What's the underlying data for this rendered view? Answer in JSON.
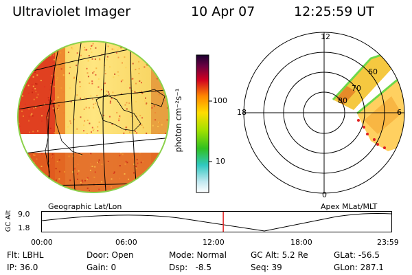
{
  "header": {
    "instrument": "Ultraviolet Imager",
    "date": "10 Apr 07",
    "time": "12:25:59 UT"
  },
  "colorbar": {
    "unit_label": "photon cm⁻²s⁻¹",
    "ticks": [
      {
        "label": "100",
        "value": 100
      },
      {
        "label": "10",
        "value": 10
      }
    ]
  },
  "geo_panel": {
    "label": "Geographic Lat/Lon"
  },
  "polar_panel": {
    "label": "Apex MLat/MLT",
    "mlt_labels": {
      "top": "12",
      "left": "18",
      "right": "6",
      "bottom": "0"
    },
    "lat_labels": [
      "60",
      "70",
      "80"
    ]
  },
  "alt_plot": {
    "ylabel": "GC Alt",
    "ytick_top": "9.0",
    "ytick_bottom": "1.8",
    "xticks": [
      "00:00",
      "06:00",
      "12:00",
      "18:00",
      "23:59"
    ],
    "current_hour": 12.43
  },
  "info": {
    "filter": "Flt: LBHL",
    "ip": "IP: 36.0",
    "door": "Door: Open",
    "gain": "Gain: 0",
    "mode": "Mode: Normal",
    "dsp": "Dsp:   -8.5",
    "gcalt": "GC Alt: 5.2 Re",
    "seq": "Seq: 39",
    "glat": "GLat: -56.5",
    "glon": "GLon: 287.1"
  }
}
